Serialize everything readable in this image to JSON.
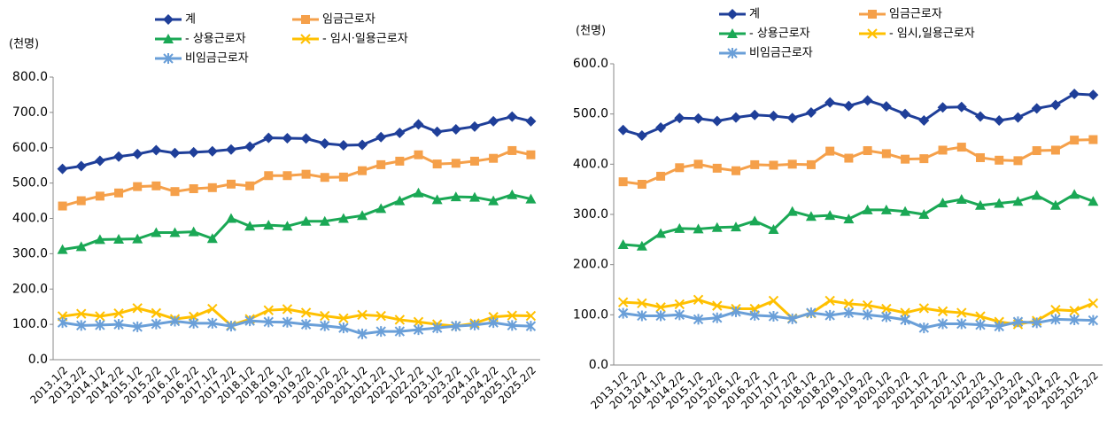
{
  "chart_data": [
    {
      "type": "line",
      "y_label": "(천명)",
      "categories": [
        "2013.1/2",
        "2013.2/2",
        "2014.1/2",
        "2014.2/2",
        "2015.1/2",
        "2015.2/2",
        "2016.1/2",
        "2016.2/2",
        "2017.1/2",
        "2017.2/2",
        "2018.1/2",
        "2018.2/2",
        "2019.1/2",
        "2019.2/2",
        "2020.1/2",
        "2020.2/2",
        "2021.1/2",
        "2021.2/2",
        "2022.1/2",
        "2022.2/2",
        "2023.1/2",
        "2023.2/2",
        "2024.1/2",
        "2024.2/2",
        "2025.1/2",
        "2025.2/2"
      ],
      "ylim": [
        0,
        800
      ],
      "yticks": [
        {
          "value": 0,
          "label": "0.0"
        },
        {
          "value": 100,
          "label": "100.0"
        },
        {
          "value": 200,
          "label": "200.0"
        },
        {
          "value": 300,
          "label": "300.0"
        },
        {
          "value": 400,
          "label": "400.0"
        },
        {
          "value": 500,
          "label": "500.0"
        },
        {
          "value": 600,
          "label": "600.0"
        },
        {
          "value": 700,
          "label": "700.0"
        },
        {
          "value": 800,
          "label": "800.0"
        }
      ],
      "series": [
        {
          "name": "계",
          "color": "#1f3f99",
          "marker": "diamond",
          "values": [
            540,
            548,
            563,
            575,
            582,
            593,
            585,
            587,
            590,
            595,
            603,
            628,
            627,
            626,
            612,
            607,
            608,
            630,
            642,
            666,
            645,
            652,
            660,
            675,
            688,
            675
          ]
        },
        {
          "name": "임금근로자",
          "color": "#f5a04a",
          "marker": "square",
          "values": [
            435,
            450,
            463,
            472,
            490,
            492,
            476,
            484,
            487,
            497,
            492,
            521,
            521,
            525,
            516,
            517,
            535,
            552,
            562,
            580,
            554,
            556,
            562,
            570,
            592,
            580
          ]
        },
        {
          "name": "- 상용근로자",
          "color": "#1aa855",
          "marker": "triangle",
          "values": [
            312,
            320,
            340,
            341,
            342,
            360,
            360,
            362,
            343,
            400,
            378,
            381,
            378,
            392,
            392,
            400,
            408,
            428,
            450,
            472,
            453,
            461,
            460,
            450,
            467,
            455
          ]
        },
        {
          "name": "- 임시·일용근로자",
          "color": "#ffc000",
          "marker": "x",
          "values": [
            123,
            130,
            123,
            131,
            146,
            132,
            115,
            122,
            144,
            97,
            115,
            140,
            143,
            133,
            124,
            117,
            127,
            124,
            113,
            107,
            100,
            95,
            103,
            121,
            125,
            124
          ]
        },
        {
          "name": "비임금근로자",
          "color": "#6a9fd8",
          "marker": "star",
          "values": [
            105,
            97,
            98,
            100,
            93,
            101,
            109,
            103,
            103,
            95,
            110,
            107,
            106,
            100,
            96,
            90,
            73,
            80,
            80,
            85,
            90,
            95,
            98,
            105,
            97,
            95
          ]
        }
      ]
    },
    {
      "type": "line",
      "y_label": "(천명)",
      "categories": [
        "2013.1/2",
        "2013.2/2",
        "2014.1/2",
        "2014.2/2",
        "2015.1/2",
        "2015.2/2",
        "2016.1/2",
        "2016.2/2",
        "2017.1/2",
        "2017.2/2",
        "2018.1/2",
        "2018.2/2",
        "2019.1/2",
        "2019.2/2",
        "2020.1/2",
        "2020.2/2",
        "2021.1/2",
        "2021.2/2",
        "2022.1/2",
        "2022.2/2",
        "2023.1/2",
        "2023.2/2",
        "2024.1/2",
        "2024.2/2",
        "2025.1/2",
        "2025.2/2"
      ],
      "ylim": [
        0,
        600
      ],
      "yticks": [
        {
          "value": 0,
          "label": "0.0"
        },
        {
          "value": 100,
          "label": "100.0"
        },
        {
          "value": 200,
          "label": "200.0"
        },
        {
          "value": 300,
          "label": "300.0"
        },
        {
          "value": 400,
          "label": "400.0"
        },
        {
          "value": 500,
          "label": "500.0"
        },
        {
          "value": 600,
          "label": "600.0"
        }
      ],
      "series": [
        {
          "name": "계",
          "color": "#1f3f99",
          "marker": "diamond",
          "values": [
            468,
            457,
            473,
            492,
            491,
            486,
            493,
            498,
            496,
            492,
            503,
            523,
            516,
            527,
            515,
            500,
            487,
            513,
            514,
            495,
            487,
            493,
            511,
            518,
            540,
            538
          ]
        },
        {
          "name": "임금근로자",
          "color": "#f5a04a",
          "marker": "square",
          "values": [
            365,
            360,
            376,
            393,
            400,
            392,
            387,
            399,
            398,
            400,
            399,
            426,
            412,
            427,
            421,
            410,
            411,
            428,
            434,
            413,
            408,
            407,
            427,
            428,
            448,
            449
          ]
        },
        {
          "name": "- 상용근로자",
          "color": "#1aa855",
          "marker": "triangle",
          "values": [
            240,
            237,
            262,
            272,
            271,
            274,
            275,
            287,
            270,
            306,
            296,
            298,
            291,
            309,
            309,
            306,
            300,
            323,
            330,
            318,
            322,
            326,
            338,
            318,
            340,
            326
          ]
        },
        {
          "name": "- 임시,일용근로자",
          "color": "#ffc000",
          "marker": "x",
          "values": [
            125,
            123,
            115,
            121,
            130,
            118,
            112,
            112,
            128,
            93,
            103,
            128,
            122,
            119,
            112,
            104,
            113,
            107,
            104,
            97,
            86,
            81,
            88,
            110,
            108,
            123
          ]
        },
        {
          "name": "비임금근로자",
          "color": "#6a9fd8",
          "marker": "star",
          "values": [
            103,
            98,
            98,
            100,
            91,
            94,
            106,
            99,
            97,
            92,
            104,
            99,
            104,
            100,
            96,
            90,
            74,
            82,
            82,
            80,
            77,
            86,
            84,
            91,
            90,
            89
          ]
        }
      ]
    }
  ]
}
